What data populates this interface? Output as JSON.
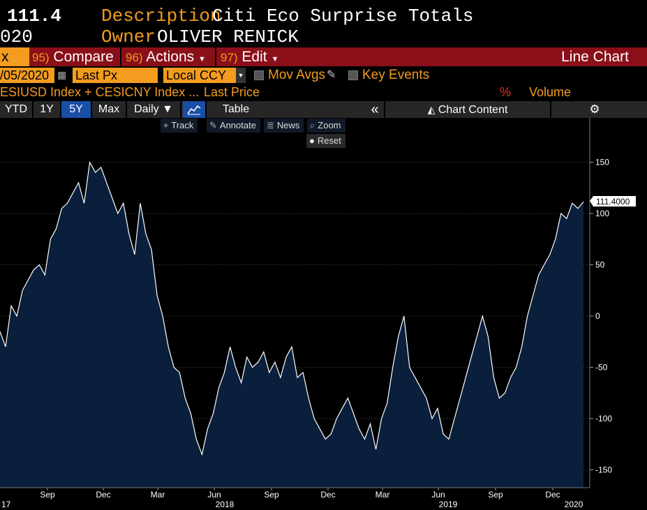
{
  "header": {
    "value": "111.4",
    "date_fragment": "020",
    "description_label": "Description",
    "description": "Citi Eco Surprise Totals",
    "owner_label": "Owner",
    "owner": "OLIVER RENICK"
  },
  "toolbar": {
    "left_fragment": "x",
    "compare_num": "95)",
    "compare_label": "Compare",
    "actions_num": "96)",
    "actions_label": "Actions",
    "edit_num": "97)",
    "edit_label": "Edit",
    "chart_type": "Line Chart"
  },
  "inputs": {
    "date": "/05/2020",
    "field": "Last Px",
    "currency": "Local CCY",
    "mov_avgs": "Mov Avgs",
    "key_events": "Key Events"
  },
  "security_row": {
    "securities": "ESIUSD Index + CESICNY Index ...",
    "field": "Last Price",
    "percent": "%",
    "volume": "Volume"
  },
  "tabs": {
    "ytd": "YTD",
    "y1": "1Y",
    "y5": "5Y",
    "max": "Max",
    "daily": "Daily ▼",
    "table": "Table",
    "collapse": "«",
    "chart_content": "Chart Content"
  },
  "chart_tools": {
    "track": "Track",
    "annotate": "Annotate",
    "news": "News",
    "zoom": "Zoom",
    "reset": "Reset"
  },
  "colors": {
    "line": "#ffffff",
    "fill": "#0a1f3c",
    "orange": "#f39c1f",
    "toolbar": "#8a0f18",
    "active_tab": "#1a4fa8"
  },
  "chart_data": {
    "type": "area",
    "title": "Citi Eco Surprise Totals",
    "last_value_label": "111.4000",
    "ylim": [
      -165,
      190
    ],
    "y_ticks": [
      150,
      100,
      50,
      0,
      -50,
      -100,
      -150
    ],
    "y_tick_labels": [
      "150",
      "100",
      "50",
      "0",
      "-50",
      "-100",
      "-150"
    ],
    "x_month_labels": [
      "Sep",
      "Dec",
      "Mar",
      "Jun",
      "Sep",
      "Dec",
      "Mar",
      "Jun",
      "Sep",
      "Dec"
    ],
    "x_year_labels": [
      "17",
      "2018",
      "2019",
      "2020"
    ],
    "x": [
      0,
      2,
      4,
      6,
      8,
      10,
      12,
      14,
      16,
      18,
      20,
      22,
      24,
      26,
      28,
      30,
      32,
      34,
      36,
      38,
      40,
      42,
      44,
      46,
      48,
      50,
      52,
      54,
      56,
      58,
      60,
      62,
      64,
      66,
      68,
      70,
      72,
      74,
      76,
      78,
      80,
      82,
      84,
      86,
      88,
      90,
      92,
      94,
      96,
      98,
      100,
      102,
      104,
      106,
      108,
      110,
      112,
      114,
      116,
      118,
      120,
      122,
      124,
      126,
      128,
      130,
      132,
      134,
      136,
      138,
      140,
      142,
      144,
      146,
      148,
      150,
      152,
      154,
      156,
      158,
      160,
      162,
      164,
      166,
      168,
      170,
      172,
      174,
      176,
      178,
      180,
      182,
      184,
      186,
      188,
      190,
      192,
      194,
      196,
      198,
      200,
      202,
      204,
      206,
      208
    ],
    "values": [
      -15,
      -30,
      10,
      0,
      25,
      35,
      45,
      50,
      40,
      75,
      85,
      105,
      110,
      120,
      130,
      110,
      150,
      140,
      145,
      130,
      115,
      100,
      110,
      80,
      60,
      110,
      80,
      65,
      20,
      0,
      -30,
      -50,
      -55,
      -80,
      -95,
      -120,
      -135,
      -110,
      -95,
      -70,
      -55,
      -30,
      -50,
      -65,
      -40,
      -50,
      -45,
      -35,
      -55,
      -45,
      -60,
      -40,
      -30,
      -60,
      -55,
      -80,
      -100,
      -110,
      -120,
      -115,
      -100,
      -90,
      -80,
      -95,
      -110,
      -120,
      -105,
      -130,
      -100,
      -85,
      -50,
      -20,
      0,
      -50,
      -60,
      -70,
      -80,
      -100,
      -90,
      -115,
      -120,
      -100,
      -80,
      -60,
      -40,
      -20,
      0,
      -20,
      -60,
      -80,
      -75,
      -60,
      -50,
      -30,
      0,
      20,
      40,
      50,
      60,
      75,
      100,
      95,
      110,
      105,
      111.4
    ]
  }
}
